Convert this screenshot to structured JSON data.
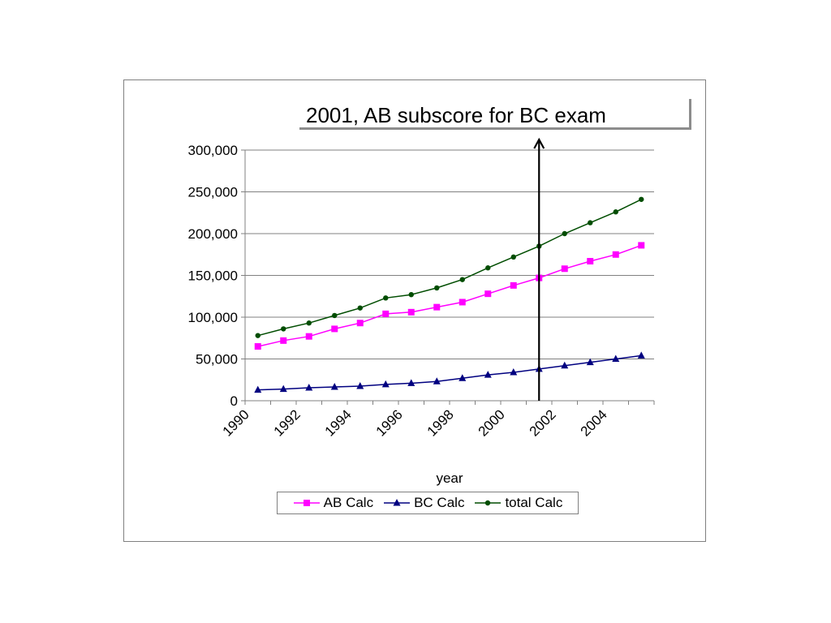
{
  "annotation": "2001, AB subscore for BC exam",
  "chart_data": {
    "type": "line",
    "title": "",
    "xlabel": "year",
    "ylabel": "",
    "x": [
      1990.5,
      1991.5,
      1992.5,
      1993.5,
      1994.5,
      1995.5,
      1996.5,
      1997.5,
      1998.5,
      1999.5,
      2000.5,
      2001.5,
      2002.5,
      2003.5,
      2004.5,
      2005.5
    ],
    "xticks": [
      "1990",
      "1992",
      "1994",
      "1996",
      "1998",
      "2000",
      "2002",
      "2004"
    ],
    "yticks": [
      "0",
      "50,000",
      "100,000",
      "150,000",
      "200,000",
      "250,000",
      "300,000"
    ],
    "ylim": [
      0,
      300000
    ],
    "grid": true,
    "legend_position": "bottom",
    "marker_line_x": 2001.5,
    "series": [
      {
        "name": "AB Calc",
        "color": "#ff00ff",
        "marker": "square",
        "values": [
          65000,
          72000,
          77000,
          86000,
          93000,
          104000,
          106000,
          112000,
          118000,
          128000,
          138000,
          147000,
          158000,
          167000,
          175000,
          186000
        ]
      },
      {
        "name": "BC Calc",
        "color": "#000080",
        "marker": "triangle",
        "values": [
          13000,
          14000,
          15500,
          16500,
          17500,
          19500,
          21000,
          23000,
          27000,
          31000,
          34000,
          38000,
          42000,
          46000,
          50000,
          54000
        ]
      },
      {
        "name": "total Calc",
        "color": "#004d00",
        "marker": "circle",
        "values": [
          78000,
          86000,
          93000,
          102000,
          111000,
          123000,
          127000,
          135000,
          145000,
          159000,
          172000,
          185000,
          200000,
          213000,
          226000,
          241000
        ]
      }
    ]
  }
}
